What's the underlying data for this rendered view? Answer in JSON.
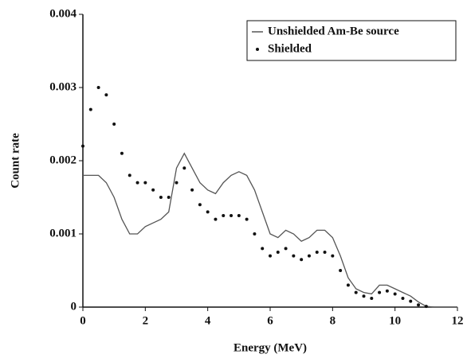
{
  "chart_data": {
    "type": "line",
    "x_label": "Energy (MeV)",
    "y_label": "Count rate",
    "x": [
      0,
      0.25,
      0.5,
      0.75,
      1,
      1.25,
      1.5,
      1.75,
      2,
      2.25,
      2.5,
      2.75,
      3,
      3.25,
      3.5,
      3.75,
      4,
      4.25,
      4.5,
      4.75,
      5,
      5.25,
      5.5,
      5.75,
      6,
      6.25,
      6.5,
      6.75,
      7,
      7.25,
      7.5,
      7.75,
      8,
      8.25,
      8.5,
      8.75,
      9,
      9.25,
      9.5,
      9.75,
      10,
      10.25,
      10.5,
      10.75,
      11,
      11.25,
      11.5,
      11.75,
      12
    ],
    "series": [
      {
        "name": "Unshielded Am-Be source",
        "style": "line",
        "color": "#555555",
        "values": [
          0.0018,
          0.0018,
          0.0018,
          0.0017,
          0.0015,
          0.0012,
          0.001,
          0.001,
          0.0011,
          0.00115,
          0.0012,
          0.0013,
          0.0019,
          0.0021,
          0.0019,
          0.0017,
          0.0016,
          0.00155,
          0.0017,
          0.0018,
          0.00185,
          0.0018,
          0.0016,
          0.0013,
          0.001,
          0.00095,
          0.00105,
          0.001,
          0.0009,
          0.00095,
          0.00105,
          0.00105,
          0.00095,
          0.0007,
          0.0004,
          0.00025,
          0.0002,
          0.00018,
          0.0003,
          0.0003,
          0.00025,
          0.0002,
          0.00015,
          7e-05,
          1e-05,
          0,
          0,
          0,
          0
        ]
      },
      {
        "name": "Shielded",
        "style": "points",
        "color": "#111111",
        "values": [
          0.0022,
          0.0027,
          0.003,
          0.0029,
          0.0025,
          0.0021,
          0.0018,
          0.0017,
          0.0017,
          0.0016,
          0.0015,
          0.0015,
          0.0017,
          0.0019,
          0.0016,
          0.0014,
          0.0013,
          0.0012,
          0.00125,
          0.00125,
          0.00125,
          0.0012,
          0.001,
          0.0008,
          0.0007,
          0.00075,
          0.0008,
          0.0007,
          0.00065,
          0.0007,
          0.00075,
          0.00075,
          0.0007,
          0.0005,
          0.0003,
          0.0002,
          0.00015,
          0.00012,
          0.0002,
          0.00022,
          0.00018,
          0.00012,
          8e-05,
          3e-05,
          1e-05,
          null,
          null,
          null,
          null
        ]
      }
    ],
    "xlim": [
      0,
      12
    ],
    "xticks": [
      0,
      2,
      4,
      6,
      8,
      10,
      12
    ],
    "ylim": [
      0,
      0.004
    ],
    "yticks": [
      0,
      0.001,
      0.002,
      0.003,
      0.004
    ],
    "legend": "top-right"
  }
}
